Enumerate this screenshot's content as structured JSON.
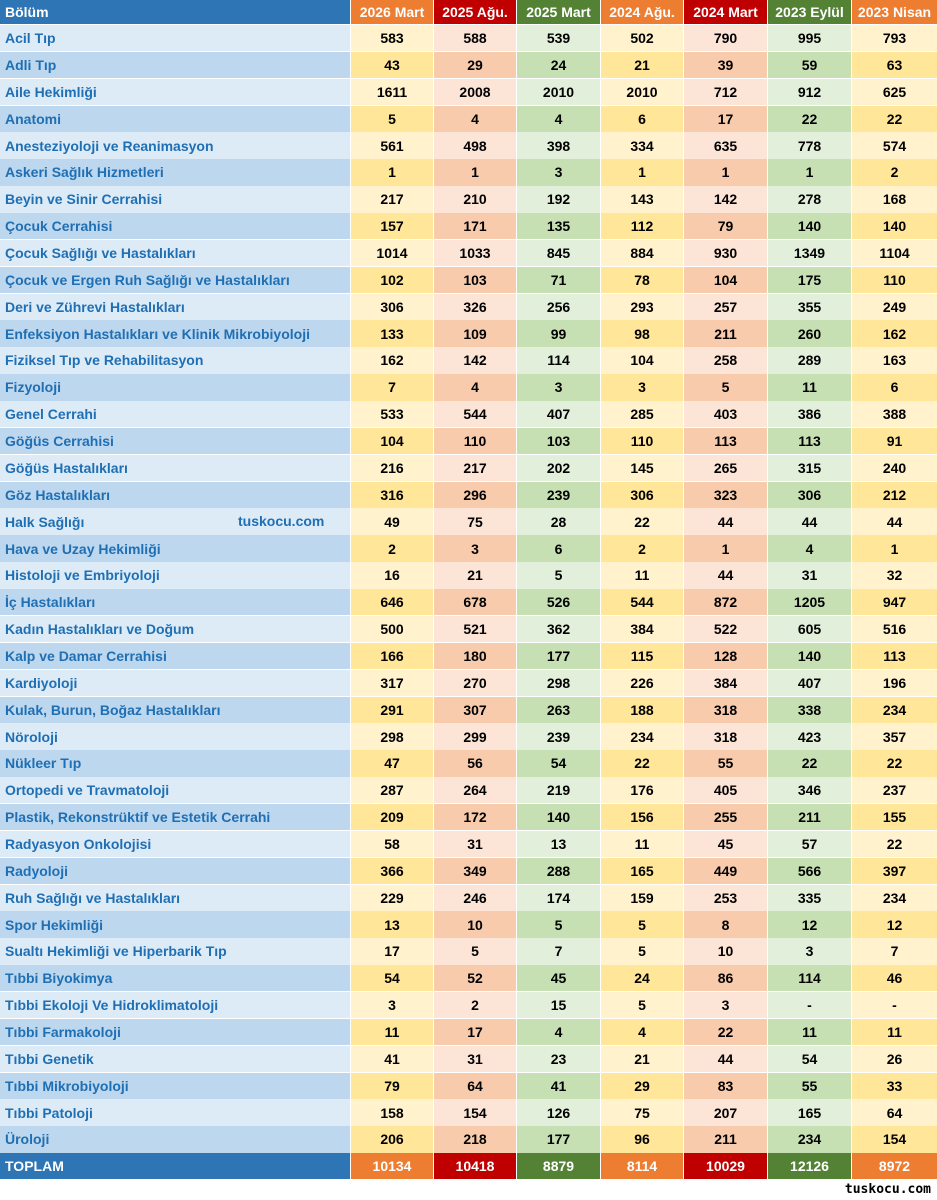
{
  "table": {
    "header": [
      "Bölüm",
      "2026 Mart",
      "2025 Ağu.",
      "2025 Mart",
      "2024 Ağu.",
      "2024 Mart",
      "2023 Eylül",
      "2023 Nisan"
    ],
    "column_colors": [
      "#2e75b6",
      "#ed7d31",
      "#c00000",
      "#548235",
      "#ed7d31",
      "#c00000",
      "#548235",
      "#ed7d31"
    ],
    "rows": [
      [
        "Acil Tıp",
        "583",
        "588",
        "539",
        "502",
        "790",
        "995",
        "793"
      ],
      [
        "Adli Tıp",
        "43",
        "29",
        "24",
        "21",
        "39",
        "59",
        "63"
      ],
      [
        "Aile Hekimliği",
        "1611",
        "2008",
        "2010",
        "2010",
        "712",
        "912",
        "625"
      ],
      [
        "Anatomi",
        "5",
        "4",
        "4",
        "6",
        "17",
        "22",
        "22"
      ],
      [
        "Anesteziyoloji ve Reanimasyon",
        "561",
        "498",
        "398",
        "334",
        "635",
        "778",
        "574"
      ],
      [
        "Askeri Sağlık Hizmetleri",
        "1",
        "1",
        "3",
        "1",
        "1",
        "1",
        "2"
      ],
      [
        "Beyin ve Sinir Cerrahisi",
        "217",
        "210",
        "192",
        "143",
        "142",
        "278",
        "168"
      ],
      [
        "Çocuk Cerrahisi",
        "157",
        "171",
        "135",
        "112",
        "79",
        "140",
        "140"
      ],
      [
        "Çocuk Sağlığı ve Hastalıkları",
        "1014",
        "1033",
        "845",
        "884",
        "930",
        "1349",
        "1104"
      ],
      [
        "Çocuk ve Ergen Ruh Sağlığı ve Hastalıkları",
        "102",
        "103",
        "71",
        "78",
        "104",
        "175",
        "110"
      ],
      [
        "Deri ve Zührevi Hastalıkları",
        "306",
        "326",
        "256",
        "293",
        "257",
        "355",
        "249"
      ],
      [
        "Enfeksiyon Hastalıkları ve Klinik Mikrobiyoloji",
        "133",
        "109",
        "99",
        "98",
        "211",
        "260",
        "162"
      ],
      [
        "Fiziksel Tıp ve Rehabilitasyon",
        "162",
        "142",
        "114",
        "104",
        "258",
        "289",
        "163"
      ],
      [
        "Fizyoloji",
        "7",
        "4",
        "3",
        "3",
        "5",
        "11",
        "6"
      ],
      [
        "Genel Cerrahi",
        "533",
        "544",
        "407",
        "285",
        "403",
        "386",
        "388"
      ],
      [
        "Göğüs Cerrahisi",
        "104",
        "110",
        "103",
        "110",
        "113",
        "113",
        "91"
      ],
      [
        "Göğüs Hastalıkları",
        "216",
        "217",
        "202",
        "145",
        "265",
        "315",
        "240"
      ],
      [
        "Göz Hastalıkları",
        "316",
        "296",
        "239",
        "306",
        "323",
        "306",
        "212"
      ],
      [
        "Halk Sağlığı",
        "49",
        "75",
        "28",
        "22",
        "44",
        "44",
        "44"
      ],
      [
        "Hava ve Uzay Hekimliği",
        "2",
        "3",
        "6",
        "2",
        "1",
        "4",
        "1"
      ],
      [
        "Histoloji ve Embriyoloji",
        "16",
        "21",
        "5",
        "11",
        "44",
        "31",
        "32"
      ],
      [
        "İç Hastalıkları",
        "646",
        "678",
        "526",
        "544",
        "872",
        "1205",
        "947"
      ],
      [
        "Kadın Hastalıkları ve Doğum",
        "500",
        "521",
        "362",
        "384",
        "522",
        "605",
        "516"
      ],
      [
        "Kalp ve Damar Cerrahisi",
        "166",
        "180",
        "177",
        "115",
        "128",
        "140",
        "113"
      ],
      [
        "Kardiyoloji",
        "317",
        "270",
        "298",
        "226",
        "384",
        "407",
        "196"
      ],
      [
        "Kulak, Burun, Boğaz Hastalıkları",
        "291",
        "307",
        "263",
        "188",
        "318",
        "338",
        "234"
      ],
      [
        "Nöroloji",
        "298",
        "299",
        "239",
        "234",
        "318",
        "423",
        "357"
      ],
      [
        "Nükleer Tıp",
        "47",
        "56",
        "54",
        "22",
        "55",
        "22",
        "22"
      ],
      [
        "Ortopedi ve Travmatoloji",
        "287",
        "264",
        "219",
        "176",
        "405",
        "346",
        "237"
      ],
      [
        "Plastik, Rekonstrüktif ve Estetik Cerrahi",
        "209",
        "172",
        "140",
        "156",
        "255",
        "211",
        "155"
      ],
      [
        "Radyasyon Onkolojisi",
        "58",
        "31",
        "13",
        "11",
        "45",
        "57",
        "22"
      ],
      [
        "Radyoloji",
        "366",
        "349",
        "288",
        "165",
        "449",
        "566",
        "397"
      ],
      [
        "Ruh Sağlığı ve Hastalıkları",
        "229",
        "246",
        "174",
        "159",
        "253",
        "335",
        "234"
      ],
      [
        "Spor Hekimliği",
        "13",
        "10",
        "5",
        "5",
        "8",
        "12",
        "12"
      ],
      [
        "Sualtı Hekimliği ve Hiperbarik Tıp",
        "17",
        "5",
        "7",
        "5",
        "10",
        "3",
        "7"
      ],
      [
        "Tıbbi Biyokimya",
        "54",
        "52",
        "45",
        "24",
        "86",
        "114",
        "46"
      ],
      [
        "Tıbbi Ekoloji Ve Hidroklimatoloji",
        "3",
        "2",
        "15",
        "5",
        "3",
        "-",
        "-"
      ],
      [
        "Tıbbi Farmakoloji",
        "11",
        "17",
        "4",
        "4",
        "22",
        "11",
        "11"
      ],
      [
        "Tıbbi Genetik",
        "41",
        "31",
        "23",
        "21",
        "44",
        "54",
        "26"
      ],
      [
        "Tıbbi Mikrobiyoloji",
        "79",
        "64",
        "41",
        "29",
        "83",
        "55",
        "33"
      ],
      [
        "Tıbbi Patoloji",
        "158",
        "154",
        "126",
        "75",
        "207",
        "165",
        "64"
      ],
      [
        "Üroloji",
        "206",
        "218",
        "177",
        "96",
        "211",
        "234",
        "154"
      ]
    ],
    "total": [
      "TOPLAM",
      "10134",
      "10418",
      "8879",
      "8114",
      "10029",
      "12126",
      "8972"
    ]
  },
  "watermark_inline": "tuskocu.com",
  "watermark_footer": "tuskocu.com"
}
